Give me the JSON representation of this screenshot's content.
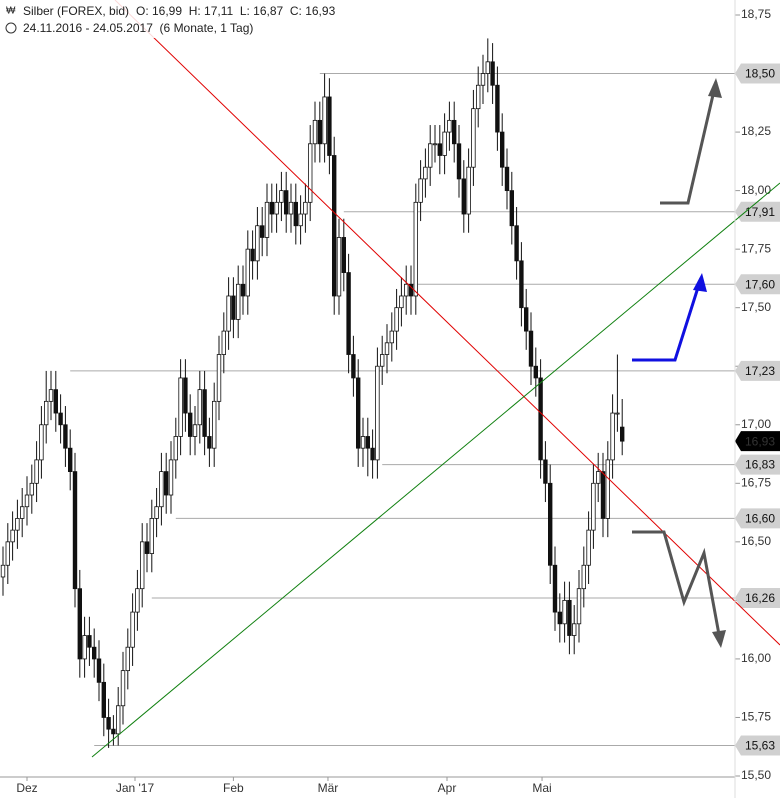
{
  "chart_data": {
    "type": "candlestick",
    "title": "Silber (FOREX, bid)",
    "ohlc_text": "O: 16,99  H: 17,11  L: 16,87  C: 16,93",
    "subtitle": "24.11.2016 - 24.05.2017  (6 Monate, 1 Tag)",
    "open": [
      16.35,
      16.4,
      16.5,
      16.55,
      16.6,
      16.65,
      16.7,
      16.75,
      16.85,
      17.0,
      17.1,
      17.15,
      17.05,
      17.0,
      16.9,
      16.8,
      16.3,
      16.0,
      16.1,
      16.05,
      16.0,
      15.9,
      15.75,
      15.7,
      15.68,
      15.8,
      15.95,
      16.05,
      16.2,
      16.3,
      16.5,
      16.45,
      16.6,
      16.65,
      16.8,
      16.7,
      16.85,
      16.95,
      17.2,
      17.05,
      16.95,
      17.0,
      17.15,
      16.95,
      16.9,
      17.1,
      17.3,
      17.4,
      17.55,
      17.45,
      17.6,
      17.55,
      17.75,
      17.7,
      17.85,
      17.8,
      17.95,
      17.9,
      17.95,
      18.0,
      17.9,
      17.95,
      17.85,
      17.9,
      17.95,
      18.2,
      18.3,
      18.2,
      18.4,
      18.15,
      17.55,
      17.8,
      17.65,
      17.3,
      17.2,
      16.9,
      16.95,
      16.9,
      16.85,
      17.25,
      17.3,
      17.35,
      17.4,
      17.5,
      17.55,
      17.6,
      17.55,
      17.95,
      18.05,
      18.1,
      18.2,
      18.2,
      18.15,
      18.25,
      18.3,
      18.2,
      18.05,
      17.9,
      18.1,
      18.35,
      18.45,
      18.5,
      18.55,
      18.45,
      18.25,
      18.1,
      18.0,
      17.85,
      17.7,
      17.5,
      17.4,
      17.25,
      17.2,
      16.85,
      16.75,
      16.4,
      16.2,
      16.15,
      16.25,
      16.1,
      16.15,
      16.3,
      16.4,
      16.55,
      16.75,
      16.8,
      16.6,
      16.85,
      17.05,
      16.99
    ],
    "high": [
      16.48,
      16.58,
      16.63,
      16.68,
      16.73,
      16.78,
      16.83,
      16.93,
      17.08,
      17.23,
      17.23,
      17.23,
      17.13,
      17.08,
      16.98,
      16.88,
      16.38,
      16.18,
      16.18,
      16.13,
      16.08,
      15.98,
      15.83,
      15.76,
      15.88,
      16.03,
      16.13,
      16.28,
      16.38,
      16.58,
      16.58,
      16.68,
      16.73,
      16.88,
      16.88,
      16.93,
      17.03,
      17.28,
      17.28,
      17.13,
      17.08,
      17.23,
      17.23,
      17.03,
      17.18,
      17.38,
      17.48,
      17.63,
      17.63,
      17.68,
      17.68,
      17.83,
      17.83,
      17.93,
      17.93,
      18.03,
      18.03,
      18.03,
      18.08,
      18.08,
      18.03,
      18.03,
      17.98,
      18.03,
      18.28,
      18.38,
      18.38,
      18.5,
      18.48,
      18.23,
      17.88,
      17.88,
      17.73,
      17.38,
      17.28,
      17.03,
      17.03,
      16.98,
      17.33,
      17.38,
      17.43,
      17.48,
      17.58,
      17.63,
      17.68,
      17.68,
      18.03,
      18.13,
      18.18,
      18.28,
      18.28,
      18.28,
      18.33,
      18.38,
      18.38,
      18.28,
      18.13,
      18.18,
      18.43,
      18.53,
      18.58,
      18.65,
      18.63,
      18.53,
      18.33,
      18.18,
      18.08,
      17.93,
      17.78,
      17.58,
      17.48,
      17.33,
      17.28,
      16.93,
      16.83,
      16.48,
      16.28,
      16.33,
      16.33,
      16.23,
      16.38,
      16.48,
      16.63,
      16.83,
      16.88,
      16.88,
      16.93,
      17.13,
      17.3,
      17.11
    ],
    "low": [
      16.27,
      16.32,
      16.42,
      16.47,
      16.52,
      16.57,
      16.62,
      16.67,
      16.77,
      16.92,
      17.02,
      16.97,
      16.92,
      16.82,
      16.72,
      16.22,
      15.92,
      15.92,
      15.97,
      15.92,
      15.82,
      15.67,
      15.62,
      15.63,
      15.63,
      15.72,
      15.87,
      15.97,
      16.12,
      16.22,
      16.37,
      16.37,
      16.52,
      16.57,
      16.62,
      16.62,
      16.77,
      16.87,
      16.97,
      16.87,
      16.87,
      16.92,
      16.87,
      16.82,
      16.82,
      17.02,
      17.22,
      17.32,
      17.37,
      17.37,
      17.47,
      17.47,
      17.62,
      17.62,
      17.72,
      17.72,
      17.82,
      17.82,
      17.87,
      17.82,
      17.82,
      17.77,
      17.77,
      17.82,
      17.87,
      18.12,
      18.12,
      18.12,
      18.07,
      17.47,
      17.47,
      17.57,
      17.22,
      17.12,
      16.82,
      16.82,
      16.78,
      16.77,
      16.77,
      17.17,
      17.22,
      17.27,
      17.32,
      17.42,
      17.47,
      17.47,
      17.47,
      17.87,
      17.97,
      18.02,
      18.12,
      18.07,
      18.07,
      18.17,
      18.12,
      17.97,
      17.82,
      17.82,
      18.02,
      18.27,
      18.37,
      18.42,
      18.37,
      18.17,
      18.02,
      17.92,
      17.77,
      17.62,
      17.42,
      17.32,
      17.17,
      17.12,
      16.77,
      16.67,
      16.32,
      16.12,
      16.07,
      16.07,
      16.02,
      16.02,
      16.07,
      16.22,
      16.32,
      16.47,
      16.67,
      16.52,
      16.52,
      16.77,
      16.97,
      16.87
    ],
    "close": [
      16.4,
      16.5,
      16.55,
      16.6,
      16.65,
      16.7,
      16.75,
      16.85,
      17.0,
      17.1,
      17.15,
      17.05,
      17.0,
      16.9,
      16.8,
      16.3,
      16.0,
      16.1,
      16.05,
      16.0,
      15.9,
      15.75,
      15.7,
      15.68,
      15.8,
      15.95,
      16.05,
      16.2,
      16.3,
      16.5,
      16.45,
      16.6,
      16.65,
      16.8,
      16.7,
      16.85,
      16.95,
      17.2,
      17.05,
      16.95,
      17.0,
      17.15,
      16.95,
      16.9,
      17.1,
      17.3,
      17.4,
      17.55,
      17.45,
      17.6,
      17.55,
      17.75,
      17.7,
      17.85,
      17.8,
      17.95,
      17.9,
      17.95,
      18.0,
      17.9,
      17.95,
      17.85,
      17.9,
      17.95,
      18.2,
      18.3,
      18.2,
      18.4,
      18.15,
      17.55,
      17.8,
      17.65,
      17.3,
      17.2,
      16.9,
      16.95,
      16.9,
      16.85,
      17.25,
      17.3,
      17.35,
      17.4,
      17.5,
      17.55,
      17.6,
      17.55,
      17.95,
      18.05,
      18.1,
      18.2,
      18.2,
      18.15,
      18.25,
      18.3,
      18.2,
      18.05,
      17.9,
      18.1,
      18.35,
      18.45,
      18.5,
      18.55,
      18.45,
      18.25,
      18.1,
      18.0,
      17.85,
      17.7,
      17.5,
      17.4,
      17.25,
      17.2,
      16.85,
      16.75,
      16.4,
      16.2,
      16.15,
      16.25,
      16.1,
      16.15,
      16.3,
      16.4,
      16.55,
      16.75,
      16.8,
      16.6,
      16.85,
      17.05,
      17.05,
      16.93
    ],
    "ylim": [
      15.5,
      18.75
    ],
    "yticks": [
      {
        "value": 15.5,
        "label": "15,50"
      },
      {
        "value": 15.75,
        "label": "15,75"
      },
      {
        "value": 16,
        "label": "16,00"
      },
      {
        "value": 16.25,
        "label": "16,25"
      },
      {
        "value": 16.5,
        "label": "16,50"
      },
      {
        "value": 16.75,
        "label": "16,75"
      },
      {
        "value": 17,
        "label": "17,00"
      },
      {
        "value": 17.25,
        "label": "17,25"
      },
      {
        "value": 17.5,
        "label": "17,50"
      },
      {
        "value": 17.75,
        "label": "17,75"
      },
      {
        "value": 18,
        "label": "18,00"
      },
      {
        "value": 18.25,
        "label": "18,25"
      },
      {
        "value": 18.5,
        "label": "18,50"
      },
      {
        "value": 18.75,
        "label": "18,75"
      }
    ],
    "xticks": [
      {
        "value": 5,
        "label": "Dez"
      },
      {
        "value": 27.5,
        "label": "Jan '17"
      },
      {
        "value": 48,
        "label": "Feb"
      },
      {
        "value": 67.7,
        "label": "Mär"
      },
      {
        "value": 92.5,
        "label": "Apr"
      },
      {
        "value": 112.3,
        "label": "Mai"
      }
    ],
    "levels": [
      {
        "value": 18.5,
        "label": "18,50",
        "start": 66
      },
      {
        "value": 17.91,
        "label": "17,91",
        "start": 71
      },
      {
        "value": 17.6,
        "label": "17,60",
        "start": 84
      },
      {
        "value": 17.23,
        "label": "17,23",
        "start": 14
      },
      {
        "value": 16.83,
        "label": "16,83",
        "start": 79
      },
      {
        "value": 16.6,
        "label": "16,60",
        "start": 36
      },
      {
        "value": 16.26,
        "label": "16,26",
        "start": 31
      },
      {
        "value": 15.63,
        "label": "15,63",
        "start": 19
      }
    ],
    "last": {
      "value": 16.93,
      "label": "16,93"
    }
  }
}
